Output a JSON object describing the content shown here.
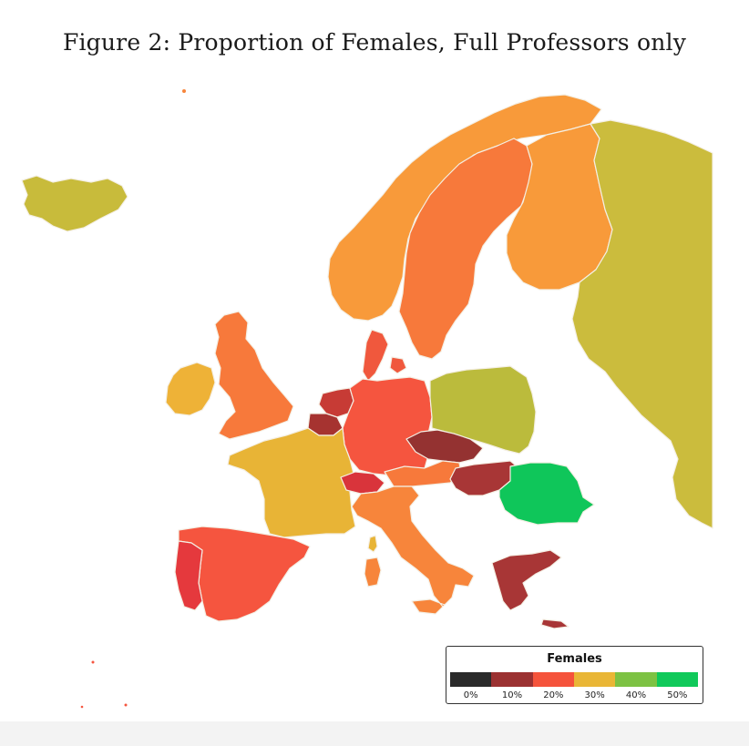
{
  "figure": {
    "caption": "Figure 2: Proportion of Females, Full Professors only"
  },
  "legend": {
    "title": "Females",
    "ticks": [
      "0%",
      "10%",
      "20%",
      "30%",
      "40%",
      "50%"
    ],
    "colors": [
      "#2a2a2a",
      "#9b3131",
      "#f5533b",
      "#e9b636",
      "#7dc243",
      "#10c95a"
    ]
  },
  "countries": [
    {
      "id": "iceland",
      "color": "#c8bb3b"
    },
    {
      "id": "norway",
      "color": "#f89a3a"
    },
    {
      "id": "sweden",
      "color": "#f7793b"
    },
    {
      "id": "finland",
      "color": "#f89a3a"
    },
    {
      "id": "russia",
      "color": "#cbbc3d"
    },
    {
      "id": "uk",
      "color": "#f7793b"
    },
    {
      "id": "ireland",
      "color": "#eeb237"
    },
    {
      "id": "denmark",
      "color": "#f0583d"
    },
    {
      "id": "netherlands",
      "color": "#c73b35"
    },
    {
      "id": "belgium",
      "color": "#a63330"
    },
    {
      "id": "germany",
      "color": "#f5553f"
    },
    {
      "id": "poland",
      "color": "#bbbb3c"
    },
    {
      "id": "czech",
      "color": "#943231"
    },
    {
      "id": "france",
      "color": "#e8b436"
    },
    {
      "id": "switzerland",
      "color": "#d9343b"
    },
    {
      "id": "austria",
      "color": "#f7793b"
    },
    {
      "id": "hungary",
      "color": "#a83636"
    },
    {
      "id": "romania",
      "color": "#0fc65a"
    },
    {
      "id": "italy",
      "color": "#f7853b"
    },
    {
      "id": "spain",
      "color": "#f5553f"
    },
    {
      "id": "portugal",
      "color": "#e5393d"
    },
    {
      "id": "greece",
      "color": "#a83636"
    },
    {
      "id": "sardinia",
      "color": "#f7853b"
    },
    {
      "id": "corsica",
      "color": "#e8b436"
    }
  ]
}
